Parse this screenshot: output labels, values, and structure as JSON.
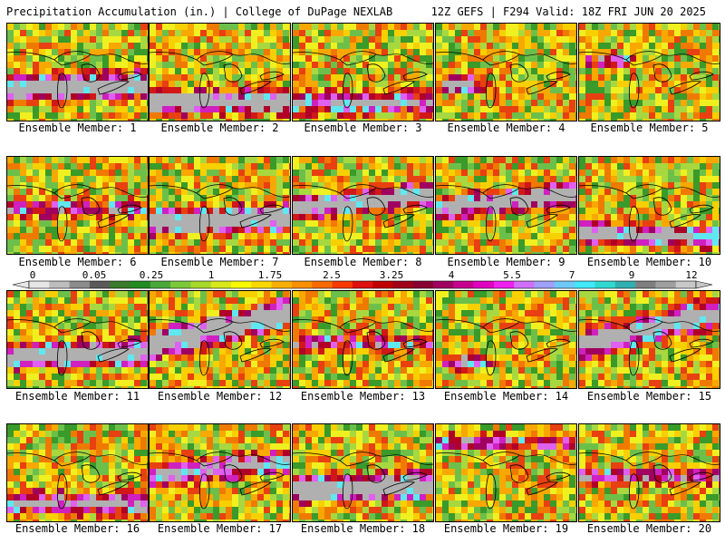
{
  "header": {
    "title": "Precipitation Accumulation (in.) | College of DuPage NEXLAB",
    "run_info": "12Z GEFS | F294 Valid: 18Z FRI JUN 20 2025"
  },
  "colorbar": {
    "labels": [
      "0",
      "0.05",
      "0.25",
      "1",
      "1.75",
      "2.5",
      "3.25",
      "4",
      "5.5",
      "7",
      "9",
      "12"
    ],
    "colors": [
      "#e6e6e6",
      "#bdbdbd",
      "#8c8c8c",
      "#5a5a5a",
      "#3a7a2a",
      "#228b22",
      "#4aa83a",
      "#7cc83a",
      "#a8d82a",
      "#d8e81a",
      "#f8f800",
      "#f8d800",
      "#f8b000",
      "#f89000",
      "#f86a00",
      "#f83a00",
      "#e01010",
      "#c00000",
      "#a00018",
      "#880030",
      "#a00060",
      "#c80090",
      "#e000c0",
      "#f020f0",
      "#d070f8",
      "#a0a0f8",
      "#70c8f8",
      "#40e8f8",
      "#30d8d0",
      "#30b0b0",
      "#7f7f7f",
      "#9f9f9f",
      "#c8c8c8"
    ]
  },
  "panels": [
    {
      "caption": "Ensemble Member: 1",
      "intensity": 0.85,
      "pattern": "band-mid"
    },
    {
      "caption": "Ensemble Member: 2",
      "intensity": 0.8,
      "pattern": "band-low"
    },
    {
      "caption": "Ensemble Member: 3",
      "intensity": 0.55,
      "pattern": "band-low"
    },
    {
      "caption": "Ensemble Member: 4",
      "intensity": 0.7,
      "pattern": "blob-west"
    },
    {
      "caption": "Ensemble Member: 5",
      "intensity": 0.55,
      "pattern": "blob-nw"
    },
    {
      "caption": "Ensemble Member: 6",
      "intensity": 0.5,
      "pattern": "scatter"
    },
    {
      "caption": "Ensemble Member: 7",
      "intensity": 0.9,
      "pattern": "band-mid"
    },
    {
      "caption": "Ensemble Member: 8",
      "intensity": 0.85,
      "pattern": "band-upper"
    },
    {
      "caption": "Ensemble Member: 9",
      "intensity": 0.8,
      "pattern": "band-upper"
    },
    {
      "caption": "Ensemble Member: 10",
      "intensity": 0.75,
      "pattern": "band-low-east"
    },
    {
      "caption": "Ensemble Member: 11",
      "intensity": 0.85,
      "pattern": "band-mid"
    },
    {
      "caption": "Ensemble Member: 12",
      "intensity": 0.9,
      "pattern": "band-nw"
    },
    {
      "caption": "Ensemble Member: 13",
      "intensity": 0.45,
      "pattern": "scatter"
    },
    {
      "caption": "Ensemble Member: 14",
      "intensity": 0.6,
      "pattern": "blob-sw"
    },
    {
      "caption": "Ensemble Member: 15",
      "intensity": 0.8,
      "pattern": "band-nw"
    },
    {
      "caption": "Ensemble Member: 16",
      "intensity": 0.6,
      "pattern": "band-low"
    },
    {
      "caption": "Ensemble Member: 17",
      "intensity": 0.7,
      "pattern": "band-upper"
    },
    {
      "caption": "Ensemble Member: 18",
      "intensity": 0.85,
      "pattern": "band-mid"
    },
    {
      "caption": "Ensemble Member: 19",
      "intensity": 0.45,
      "pattern": "band-top"
    },
    {
      "caption": "Ensemble Member: 20",
      "intensity": 0.5,
      "pattern": "scatter"
    }
  ]
}
